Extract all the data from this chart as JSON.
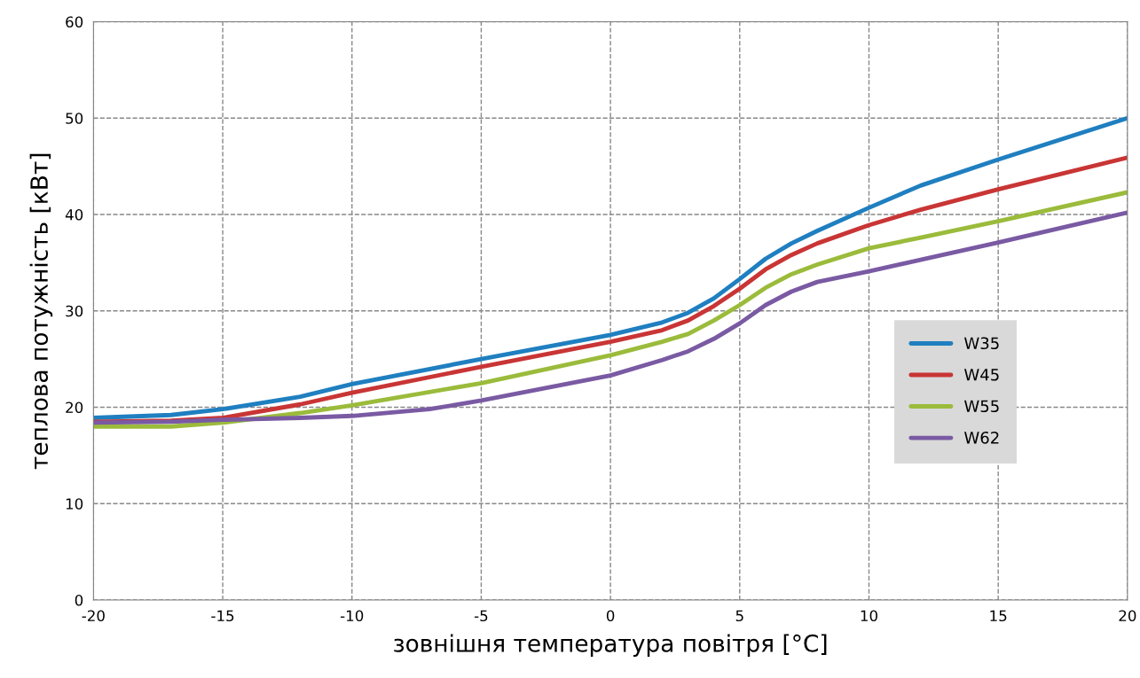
{
  "chart_data": {
    "type": "line",
    "xlabel": "зовнішня температура повітря [°C]",
    "ylabel": "теплова потужність [кВт]",
    "xlim": [
      -20,
      20
    ],
    "xticks": [
      -20,
      -15,
      -10,
      -5,
      0,
      5,
      10,
      15,
      20
    ],
    "ylim": [
      0,
      60
    ],
    "yticks": [
      0,
      10,
      20,
      30,
      40,
      50,
      60
    ],
    "grid": true,
    "legend": "right",
    "marker": "none",
    "line_style": "solid",
    "series": [
      {
        "name": "W35",
        "color": "#1f7fc0",
        "x": [
          -20,
          -17,
          -15,
          -12,
          -10,
          -5,
          0,
          2,
          3,
          4,
          5,
          6,
          7,
          8,
          10,
          12,
          15,
          20
        ],
        "values": [
          18.9,
          19.2,
          19.8,
          21.1,
          22.4,
          25.0,
          27.5,
          28.8,
          29.8,
          31.3,
          33.3,
          35.4,
          37.0,
          38.3,
          40.7,
          43.0,
          45.7,
          50.0
        ]
      },
      {
        "name": "W45",
        "color": "#c93535",
        "x": [
          -20,
          -17,
          -15,
          -12,
          -10,
          -5,
          0,
          2,
          3,
          4,
          5,
          6,
          7,
          8,
          10,
          12,
          15,
          20
        ],
        "values": [
          18.5,
          18.6,
          18.9,
          20.3,
          21.5,
          24.2,
          26.8,
          28.0,
          29.0,
          30.5,
          32.3,
          34.3,
          35.8,
          37.0,
          38.9,
          40.5,
          42.6,
          45.9
        ]
      },
      {
        "name": "W55",
        "color": "#9bbb3b",
        "x": [
          -20,
          -17,
          -15,
          -12,
          -10,
          -5,
          0,
          2,
          3,
          4,
          5,
          6,
          7,
          8,
          10,
          12,
          15,
          20
        ],
        "values": [
          18.0,
          18.0,
          18.4,
          19.4,
          20.2,
          22.5,
          25.4,
          26.8,
          27.6,
          29.0,
          30.6,
          32.4,
          33.8,
          34.8,
          36.5,
          37.6,
          39.3,
          42.3
        ]
      },
      {
        "name": "W62",
        "color": "#7a5aa3",
        "x": [
          -20,
          -17,
          -15,
          -12,
          -10,
          -7,
          -5,
          0,
          2,
          3,
          4,
          5,
          6,
          7,
          8,
          10,
          12,
          15,
          20
        ],
        "values": [
          18.4,
          18.5,
          18.7,
          18.9,
          19.1,
          19.8,
          20.7,
          23.3,
          24.9,
          25.8,
          27.1,
          28.7,
          30.6,
          32.0,
          33.0,
          34.1,
          35.3,
          37.1,
          40.2
        ]
      }
    ]
  }
}
